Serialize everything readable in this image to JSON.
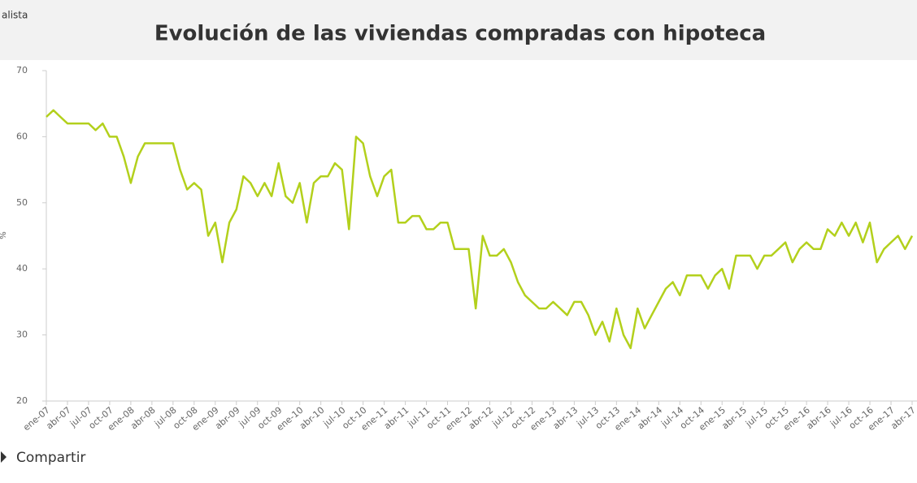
{
  "brand": "alista",
  "chart_data": {
    "type": "line",
    "title": "Evolución de las viviendas compradas con hipoteca",
    "y_label": "%",
    "categories": [
      "ene-07",
      null,
      null,
      "abr-07",
      null,
      null,
      "jul-07",
      null,
      null,
      "oct-07",
      null,
      null,
      "ene-08",
      null,
      null,
      "abr-08",
      null,
      null,
      "jul-08",
      null,
      null,
      "oct-08",
      null,
      null,
      "ene-09",
      null,
      null,
      "abr-09",
      null,
      null,
      "jul-09",
      null,
      null,
      "oct-09",
      null,
      null,
      "ene-10",
      null,
      null,
      "abr-10",
      null,
      null,
      "jul-10",
      null,
      null,
      "oct-10",
      null,
      null,
      "ene-11",
      null,
      null,
      "abr-11",
      null,
      null,
      "jul-11",
      null,
      null,
      "oct-11",
      null,
      null,
      "ene-12",
      null,
      null,
      "abr-12",
      null,
      null,
      "jul-12",
      null,
      null,
      "oct-12",
      null,
      null,
      "ene-13",
      null,
      null,
      "abr-13",
      null,
      null,
      "jul-13",
      null,
      null,
      "oct-13",
      null,
      null,
      "ene-14",
      null,
      null,
      "abr-14",
      null,
      null,
      "jul-14",
      null,
      null,
      "oct-14",
      null,
      null,
      "ene-15",
      null,
      null,
      "abr-15",
      null,
      null,
      "jul-15",
      null,
      null,
      "oct-15",
      null,
      null,
      "ene-16",
      null,
      null,
      "abr-16",
      null,
      null,
      "jul-16",
      null,
      null,
      "oct-16",
      null,
      null,
      "ene-17",
      null,
      null,
      "abr-17"
    ],
    "values": [
      63,
      64,
      63,
      62,
      62,
      62,
      62,
      61,
      62,
      60,
      60,
      57,
      53,
      57,
      59,
      59,
      59,
      59,
      59,
      55,
      52,
      53,
      52,
      45,
      47,
      41,
      47,
      49,
      54,
      53,
      51,
      53,
      51,
      56,
      51,
      50,
      53,
      47,
      53,
      54,
      54,
      56,
      55,
      46,
      60,
      59,
      54,
      51,
      54,
      55,
      47,
      47,
      48,
      48,
      46,
      46,
      47,
      47,
      43,
      43,
      43,
      34,
      45,
      42,
      42,
      43,
      41,
      38,
      36,
      35,
      34,
      34,
      35,
      34,
      33,
      35,
      35,
      33,
      30,
      32,
      29,
      34,
      30,
      28,
      34,
      31,
      33,
      35,
      37,
      38,
      36,
      39,
      39,
      39,
      37,
      39,
      40,
      37,
      42,
      42,
      42,
      40,
      42,
      42,
      43,
      44,
      41,
      43,
      44,
      43,
      43,
      46,
      45,
      47,
      45,
      47,
      44,
      47,
      41,
      43,
      44,
      45,
      43,
      45
    ],
    "color": "#b3d01c",
    "ylim": [
      20,
      70
    ],
    "yticks": [
      20,
      30,
      40,
      50,
      60,
      70
    ],
    "grid": false
  },
  "footer": {
    "share": "Compartir"
  }
}
